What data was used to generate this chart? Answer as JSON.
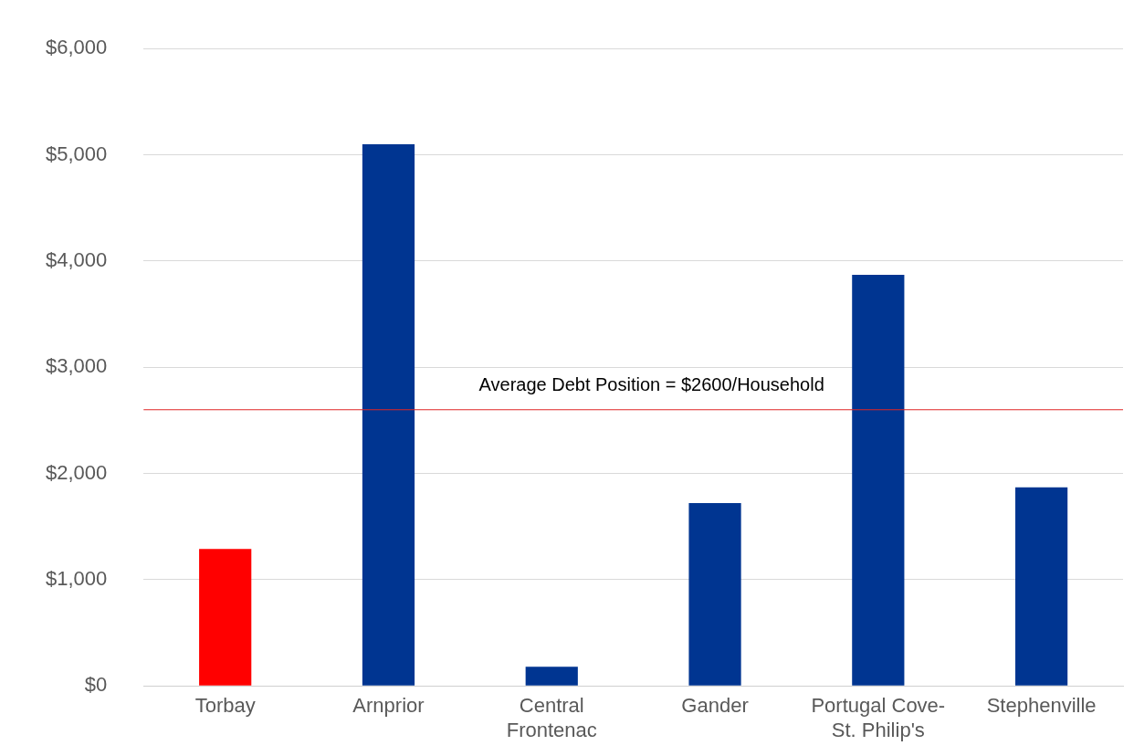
{
  "chart_data": {
    "type": "bar",
    "categories": [
      "Torbay",
      "Arnprior",
      "Central Frontenac",
      "Gander",
      "Portugal Cove-St. Philip's",
      "Stephenville"
    ],
    "values": [
      1290,
      5100,
      180,
      1720,
      3870,
      1870
    ],
    "colors": [
      "#ff0000",
      "#003591",
      "#003591",
      "#003591",
      "#003591",
      "#003591"
    ],
    "ylim": [
      0,
      6000
    ],
    "yticks": [
      {
        "value": 0,
        "label": "$0"
      },
      {
        "value": 1000,
        "label": "$1,000"
      },
      {
        "value": 2000,
        "label": "$2,000"
      },
      {
        "value": 3000,
        "label": "$3,000"
      },
      {
        "value": 4000,
        "label": "$4,000"
      },
      {
        "value": 5000,
        "label": "$5,000"
      },
      {
        "value": 6000,
        "label": "$6,000"
      }
    ],
    "grid": "y",
    "ref_lines": [
      {
        "axis": "y",
        "value": 2600,
        "label": "Average Debt Position = $2600/Household",
        "color": "#e02424"
      }
    ]
  }
}
